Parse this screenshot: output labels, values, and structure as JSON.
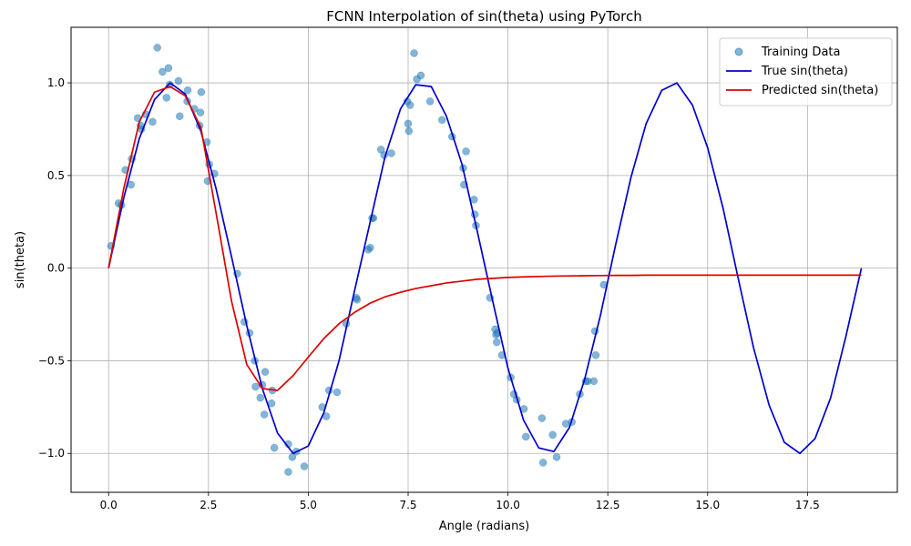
{
  "chart_data": {
    "type": "scatter",
    "title": "FCNN Interpolation of sin(theta) using PyTorch",
    "xlabel": "Angle (radians)",
    "ylabel": "sin(theta)",
    "xlim": [
      -0.94,
      19.75
    ],
    "ylim": [
      -1.21,
      1.3
    ],
    "xticks": [
      0.0,
      2.5,
      5.0,
      7.5,
      10.0,
      12.5,
      15.0,
      17.5
    ],
    "xtick_labels": [
      "0.0",
      "2.5",
      "5.0",
      "7.5",
      "10.0",
      "12.5",
      "15.0",
      "17.5"
    ],
    "yticks": [
      -1.0,
      -0.5,
      0.0,
      0.5,
      1.0
    ],
    "ytick_labels": [
      "−1.0",
      "−0.5",
      "0.0",
      "0.5",
      "1.0"
    ],
    "grid": true,
    "legend_position": "top-right",
    "series": [
      {
        "name": "Training Data",
        "type": "scatter",
        "color": "#1f77b4",
        "points": [
          [
            0.06,
            0.12
          ],
          [
            0.25,
            0.35
          ],
          [
            0.32,
            0.34
          ],
          [
            0.42,
            0.53
          ],
          [
            0.56,
            0.45
          ],
          [
            0.58,
            0.59
          ],
          [
            0.73,
            0.81
          ],
          [
            0.8,
            0.77
          ],
          [
            0.82,
            0.75
          ],
          [
            0.93,
            0.83
          ],
          [
            1.1,
            0.79
          ],
          [
            1.22,
            1.19
          ],
          [
            1.35,
            1.06
          ],
          [
            1.45,
            0.92
          ],
          [
            1.5,
            1.08
          ],
          [
            1.53,
            0.99
          ],
          [
            1.75,
            1.01
          ],
          [
            1.78,
            0.82
          ],
          [
            1.97,
            0.9
          ],
          [
            1.98,
            0.96
          ],
          [
            2.15,
            0.86
          ],
          [
            2.28,
            0.77
          ],
          [
            2.3,
            0.84
          ],
          [
            2.32,
            0.95
          ],
          [
            2.46,
            0.68
          ],
          [
            2.48,
            0.47
          ],
          [
            2.52,
            0.56
          ],
          [
            2.65,
            0.51
          ],
          [
            3.22,
            -0.03
          ],
          [
            3.4,
            -0.29
          ],
          [
            3.53,
            -0.35
          ],
          [
            3.66,
            -0.5
          ],
          [
            3.68,
            -0.64
          ],
          [
            3.8,
            -0.7
          ],
          [
            3.85,
            -0.63
          ],
          [
            3.9,
            -0.79
          ],
          [
            3.92,
            -0.56
          ],
          [
            4.08,
            -0.73
          ],
          [
            4.1,
            -0.66
          ],
          [
            4.15,
            -0.97
          ],
          [
            4.5,
            -0.95
          ],
          [
            4.5,
            -1.1
          ],
          [
            4.6,
            -1.02
          ],
          [
            4.7,
            -0.99
          ],
          [
            4.9,
            -1.07
          ],
          [
            5.35,
            -0.75
          ],
          [
            5.45,
            -0.8
          ],
          [
            5.52,
            -0.66
          ],
          [
            5.72,
            -0.67
          ],
          [
            5.95,
            -0.3
          ],
          [
            6.2,
            -0.16
          ],
          [
            6.22,
            -0.17
          ],
          [
            6.5,
            0.1
          ],
          [
            6.55,
            0.11
          ],
          [
            6.6,
            0.27
          ],
          [
            6.63,
            0.27
          ],
          [
            6.82,
            0.64
          ],
          [
            6.9,
            0.61
          ],
          [
            7.08,
            0.62
          ],
          [
            7.48,
            0.9
          ],
          [
            7.5,
            0.78
          ],
          [
            7.52,
            0.74
          ],
          [
            7.55,
            0.88
          ],
          [
            7.65,
            1.16
          ],
          [
            7.72,
            1.02
          ],
          [
            7.82,
            1.04
          ],
          [
            8.05,
            0.9
          ],
          [
            8.35,
            0.8
          ],
          [
            8.6,
            0.71
          ],
          [
            8.88,
            0.54
          ],
          [
            8.9,
            0.45
          ],
          [
            8.95,
            0.63
          ],
          [
            9.15,
            0.37
          ],
          [
            9.17,
            0.29
          ],
          [
            9.2,
            0.23
          ],
          [
            9.55,
            -0.16
          ],
          [
            9.68,
            -0.33
          ],
          [
            9.7,
            -0.36
          ],
          [
            9.72,
            -0.4
          ],
          [
            9.73,
            -0.35
          ],
          [
            9.85,
            -0.47
          ],
          [
            10.07,
            -0.59
          ],
          [
            10.15,
            -0.68
          ],
          [
            10.22,
            -0.71
          ],
          [
            10.4,
            -0.76
          ],
          [
            10.45,
            -0.91
          ],
          [
            10.85,
            -0.81
          ],
          [
            10.88,
            -1.05
          ],
          [
            11.12,
            -0.9
          ],
          [
            11.22,
            -1.02
          ],
          [
            11.45,
            -0.84
          ],
          [
            11.6,
            -0.83
          ],
          [
            11.8,
            -0.68
          ],
          [
            11.95,
            -0.61
          ],
          [
            12.0,
            -0.61
          ],
          [
            12.15,
            -0.61
          ],
          [
            12.18,
            -0.34
          ],
          [
            12.2,
            -0.47
          ],
          [
            12.4,
            -0.09
          ]
        ]
      },
      {
        "name": "True sin(theta)",
        "type": "line",
        "color": "#0000cc",
        "x": [
          0.0,
          0.38,
          0.77,
          1.15,
          1.54,
          1.92,
          2.31,
          2.69,
          3.08,
          3.46,
          3.85,
          4.23,
          4.62,
          5.0,
          5.39,
          5.77,
          6.15,
          6.54,
          6.92,
          7.31,
          7.69,
          8.08,
          8.46,
          8.85,
          9.23,
          9.62,
          10.0,
          10.39,
          10.77,
          11.15,
          11.54,
          11.92,
          12.31,
          12.69,
          13.08,
          13.46,
          13.85,
          14.23,
          14.62,
          15.0,
          15.39,
          15.77,
          16.15,
          16.54,
          16.92,
          17.31,
          17.69,
          18.08,
          18.46,
          18.85
        ],
        "values": [
          0.0,
          0.38,
          0.7,
          0.91,
          1.0,
          0.94,
          0.74,
          0.43,
          0.06,
          -0.31,
          -0.65,
          -0.89,
          -1.0,
          -0.96,
          -0.78,
          -0.5,
          -0.13,
          0.24,
          0.6,
          0.86,
          0.99,
          0.98,
          0.82,
          0.56,
          0.2,
          -0.18,
          -0.54,
          -0.82,
          -0.97,
          -0.99,
          -0.86,
          -0.6,
          -0.26,
          0.12,
          0.49,
          0.78,
          0.96,
          1.0,
          0.88,
          0.65,
          0.32,
          -0.06,
          -0.43,
          -0.74,
          -0.94,
          -1.0,
          -0.92,
          -0.7,
          -0.37,
          0.0
        ]
      },
      {
        "name": "Predicted sin(theta)",
        "type": "line",
        "color": "#dd0000",
        "x": [
          0.0,
          0.38,
          0.77,
          1.15,
          1.54,
          1.92,
          2.31,
          2.69,
          3.08,
          3.46,
          3.85,
          4.23,
          4.62,
          5.0,
          5.39,
          5.77,
          6.15,
          6.54,
          6.92,
          7.31,
          7.69,
          8.08,
          8.46,
          8.85,
          9.23,
          9.62,
          10.0,
          10.39,
          10.77,
          11.15,
          11.54,
          11.92,
          12.31,
          12.69,
          13.08,
          13.46,
          13.85,
          14.23,
          14.62,
          15.0,
          15.39,
          15.77,
          16.15,
          16.54,
          16.92,
          17.31,
          17.69,
          18.08,
          18.46,
          18.85
        ],
        "values": [
          0.0,
          0.43,
          0.79,
          0.95,
          0.98,
          0.93,
          0.76,
          0.3,
          -0.18,
          -0.52,
          -0.65,
          -0.66,
          -0.58,
          -0.48,
          -0.38,
          -0.3,
          -0.24,
          -0.19,
          -0.155,
          -0.13,
          -0.11,
          -0.095,
          -0.08,
          -0.07,
          -0.06,
          -0.055,
          -0.05,
          -0.047,
          -0.045,
          -0.043,
          -0.042,
          -0.041,
          -0.04,
          -0.039,
          -0.039,
          -0.038,
          -0.038,
          -0.038,
          -0.038,
          -0.038,
          -0.038,
          -0.038,
          -0.038,
          -0.038,
          -0.038,
          -0.038,
          -0.038,
          -0.038,
          -0.038,
          -0.038
        ]
      }
    ]
  }
}
